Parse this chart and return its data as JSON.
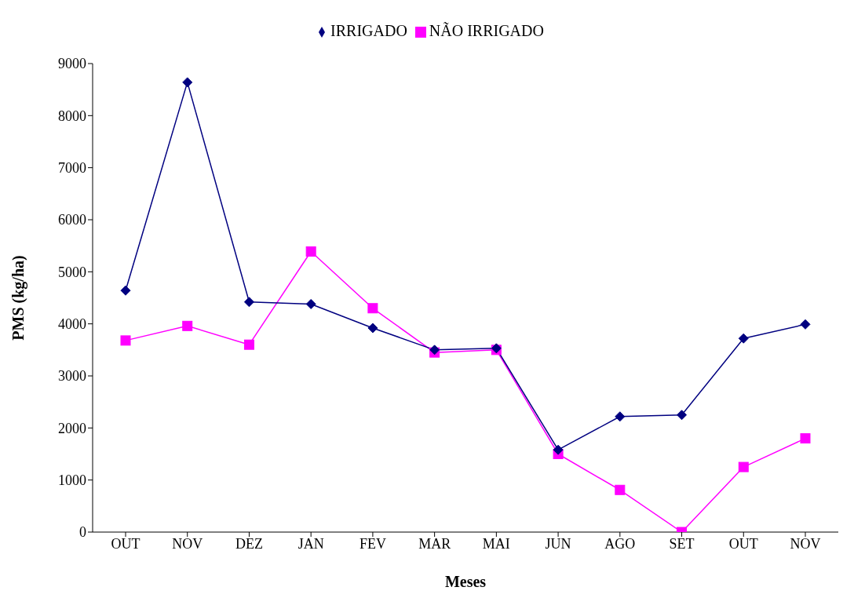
{
  "chart_data": {
    "type": "line",
    "xlabel": "Meses",
    "ylabel": "PMS (kg/ha)",
    "categories": [
      "OUT",
      "NOV",
      "DEZ",
      "JAN",
      "FEV",
      "MAR",
      "MAI",
      "JUN",
      "AGO",
      "SET",
      "OUT",
      "NOV"
    ],
    "series": [
      {
        "name": "IRRIGADO",
        "color": "#000080",
        "marker": "diamond",
        "values": [
          4640,
          8640,
          4420,
          4380,
          3920,
          3500,
          3530,
          1580,
          2220,
          2250,
          3720,
          3990
        ]
      },
      {
        "name": "NÃO IRRIGADO",
        "color": "#ff00ff",
        "marker": "square",
        "values": [
          3680,
          3960,
          3600,
          5390,
          4300,
          3450,
          3500,
          1500,
          810,
          0,
          1250,
          1800
        ]
      }
    ],
    "ylim": [
      0,
      9000
    ],
    "yticks": [
      0,
      1000,
      2000,
      3000,
      4000,
      5000,
      6000,
      7000,
      8000,
      9000
    ],
    "grid": false,
    "legend": "top"
  }
}
